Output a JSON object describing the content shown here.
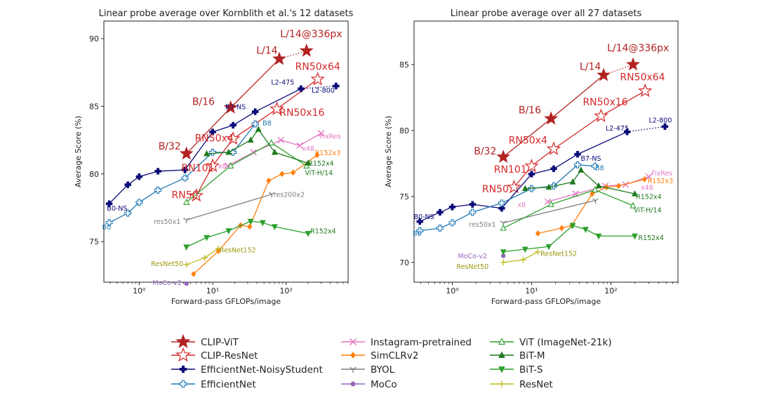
{
  "colors": {
    "clip_vit": "#b22222",
    "clip_resnet": "#d62728",
    "effnet_ns": "#0a0a78",
    "effnet": "#1f77b4",
    "instagram": "#e377c2",
    "simclr": "#ff7f0e",
    "byol": "#7f7f7f",
    "moco": "#9467bd",
    "vit": "#2ca02c",
    "bit_m": "#1d7a1d",
    "bit_s": "#2ca02c",
    "resnet": "#bcbd22"
  },
  "legend": [
    {
      "id": "clip_vit",
      "label": "CLIP-ViT",
      "color": "#b22222",
      "marker": "star-filled"
    },
    {
      "id": "clip_resnet",
      "label": "CLIP-ResNet",
      "color": "#d62728",
      "marker": "star-open"
    },
    {
      "id": "effnet_ns",
      "label": "EfficientNet-NoisyStudent",
      "color": "#0a0a78",
      "marker": "plus-filled"
    },
    {
      "id": "effnet",
      "label": "EfficientNet",
      "color": "#1f77b4",
      "marker": "plus-open"
    },
    {
      "id": "instagram",
      "label": "Instagram-pretrained",
      "color": "#e377c2",
      "marker": "x"
    },
    {
      "id": "simclr",
      "label": "SimCLRv2",
      "color": "#ff7f0e",
      "marker": "diamond"
    },
    {
      "id": "byol",
      "label": "BYOL",
      "color": "#7f7f7f",
      "marker": "tri-down"
    },
    {
      "id": "moco",
      "label": "MoCo",
      "color": "#9467bd",
      "marker": "circle"
    },
    {
      "id": "vit",
      "label": "ViT (ImageNet-21k)",
      "color": "#2ca02c",
      "marker": "triangle-open"
    },
    {
      "id": "bit_m",
      "label": "BiT-M",
      "color": "#1d7a1d",
      "marker": "triangle-up"
    },
    {
      "id": "bit_s",
      "label": "BiT-S",
      "color": "#2ca02c",
      "marker": "triangle-down"
    },
    {
      "id": "resnet",
      "label": "ResNet",
      "color": "#bcbd22",
      "marker": "plus"
    }
  ],
  "chart_data": [
    {
      "type": "scatter",
      "title": "Linear probe average over Kornblith et al.'s 12 datasets",
      "xlabel": "Forward-pass GFLOPs/image",
      "ylabel": "Average Score (%)",
      "xscale": "log",
      "xlim": [
        0.33,
        700
      ],
      "ylim": [
        72.0,
        91.3
      ],
      "yticks": [
        75,
        80,
        85,
        90
      ],
      "xticks": [
        {
          "value": 1,
          "label": "10⁰"
        },
        {
          "value": 10,
          "label": "10¹"
        },
        {
          "value": 100,
          "label": "10²"
        }
      ],
      "series": [
        {
          "id": "clip_vit",
          "name": "CLIP-ViT",
          "x": [
            4.4,
            17.6,
            81,
            190
          ],
          "y": [
            81.5,
            84.9,
            88.5,
            89.1
          ],
          "dotted_from": 2
        },
        {
          "id": "clip_resnet",
          "name": "CLIP-ResNet",
          "x": [
            6,
            10,
            19,
            75,
            270
          ],
          "y": [
            78.4,
            80.6,
            82.6,
            84.8,
            87.0
          ]
        },
        {
          "id": "effnet_ns",
          "name": "EfficientNet-NoisyStudent",
          "x": [
            0.39,
            0.7,
            1.0,
            1.8,
            4.2,
            10,
            19,
            38,
            160,
            480
          ],
          "y": [
            77.8,
            79.2,
            79.8,
            80.2,
            80.3,
            83.1,
            83.6,
            84.6,
            86.3,
            86.5
          ],
          "dotted_from": 8
        },
        {
          "id": "effnet",
          "name": "EfficientNet",
          "x": [
            0.39,
            0.7,
            1.0,
            1.8,
            4.2,
            10,
            19,
            38
          ],
          "y": [
            76.4,
            77.1,
            77.9,
            78.8,
            79.7,
            81.6,
            81.6,
            83.7
          ]
        },
        {
          "id": "instagram",
          "name": "Instagram-pretrained",
          "x": [
            16,
            36,
            85,
            153,
            300
          ],
          "y": [
            80.6,
            81.6,
            82.5,
            82.1,
            83.0
          ]
        },
        {
          "id": "simclr",
          "name": "SimCLRv2",
          "x": [
            5.5,
            12,
            24,
            32,
            58,
            88,
            125,
            265
          ],
          "y": [
            72.6,
            74.3,
            76.2,
            76.1,
            79.5,
            80.0,
            80.1,
            81.4
          ]
        },
        {
          "id": "byol",
          "name": "BYOL",
          "x": [
            4.4,
            64
          ],
          "y": [
            76.6,
            78.5
          ]
        },
        {
          "id": "moco",
          "name": "MoCo",
          "x": [
            4.4
          ],
          "y": [
            71.9
          ]
        },
        {
          "id": "vit",
          "name": "ViT (ImageNet-21k)",
          "x": [
            4.4,
            17.6,
            63,
            190
          ],
          "y": [
            77.9,
            80.6,
            82.3,
            80.6
          ]
        },
        {
          "id": "bit_m",
          "name": "BiT-M",
          "x": [
            8.3,
            16.5,
            33,
            42,
            70,
            200
          ],
          "y": [
            81.5,
            81.6,
            82.5,
            83.3,
            81.6,
            80.8
          ]
        },
        {
          "id": "bit_s",
          "name": "BiT-S",
          "x": [
            4.4,
            8.3,
            16.5,
            33,
            48,
            70,
            200
          ],
          "y": [
            74.6,
            75.3,
            75.8,
            76.5,
            76.4,
            76.1,
            75.6
          ]
        },
        {
          "id": "resnet",
          "name": "ResNet",
          "x": [
            4.4,
            7.8,
            12
          ],
          "y": [
            73.3,
            73.8,
            74.5
          ]
        }
      ],
      "annotations": [
        {
          "text": "L/14@336px",
          "x": 220,
          "y": 90.1,
          "color": "#b22222",
          "size": 14
        },
        {
          "text": "L/14",
          "x": 55,
          "y": 88.9,
          "color": "#b22222",
          "size": 14
        },
        {
          "text": "B/16",
          "x": 7.5,
          "y": 85.1,
          "color": "#b22222",
          "size": 14
        },
        {
          "text": "B/32",
          "x": 2.6,
          "y": 81.8,
          "color": "#b22222",
          "size": 14
        },
        {
          "text": "RN50x64",
          "x": 270,
          "y": 87.7,
          "color": "#d62728",
          "size": 14
        },
        {
          "text": "RN50x16",
          "x": 165,
          "y": 84.3,
          "color": "#d62728",
          "size": 14
        },
        {
          "text": "RN50x4",
          "x": 10.5,
          "y": 82.4,
          "color": "#d62728",
          "size": 14
        },
        {
          "text": "RN101",
          "x": 6.3,
          "y": 80.2,
          "color": "#d62728",
          "size": 14
        },
        {
          "text": "RN50",
          "x": 4.2,
          "y": 78.2,
          "color": "#d62728",
          "size": 14
        },
        {
          "text": "L2-475",
          "x": 90,
          "y": 86.6,
          "color": "#0a0a78",
          "size": 9.5
        },
        {
          "text": "L2-800",
          "x": 320,
          "y": 86.0,
          "color": "#0a0a78",
          "size": 9.5
        },
        {
          "text": "B7-NS",
          "x": 20.5,
          "y": 84.8,
          "color": "#0a0a78",
          "size": 9.5
        },
        {
          "text": "B0-NS",
          "x": 0.5,
          "y": 77.3,
          "color": "#0a0a78",
          "size": 9.5
        },
        {
          "text": "B8",
          "x": 55,
          "y": 83.6,
          "color": "#1f77b4",
          "size": 9.5
        },
        {
          "text": "B0",
          "x": 0.36,
          "y": 75.9,
          "color": "#1f77b4",
          "size": 9.5
        },
        {
          "text": "FixRes",
          "x": 400,
          "y": 82.6,
          "color": "#e377c2",
          "size": 9.5
        },
        {
          "text": "x48",
          "x": 200,
          "y": 81.7,
          "color": "#e377c2",
          "size": 9.5
        },
        {
          "text": "x8",
          "x": 13.5,
          "y": 80.4,
          "color": "#e377c2",
          "size": 9.5
        },
        {
          "text": "R152x3",
          "x": 370,
          "y": 81.4,
          "color": "#ff7f0e",
          "size": 9.5
        },
        {
          "text": "res200x2",
          "x": 110,
          "y": 78.3,
          "color": "#7f7f7f",
          "size": 9.5
        },
        {
          "text": "res50x1",
          "x": 2.4,
          "y": 76.3,
          "color": "#7f7f7f",
          "size": 9.5
        },
        {
          "text": "R152x4",
          "x": 300,
          "y": 80.6,
          "color": "#1d7a1d",
          "size": 9.5
        },
        {
          "text": "ViT-H/14",
          "x": 280,
          "y": 79.9,
          "color": "#1d7a1d",
          "size": 9.5
        },
        {
          "text": "R152x4",
          "x": 320,
          "y": 75.6,
          "color": "#1d7a1d",
          "size": 9.5
        },
        {
          "text": "ResNet152",
          "x": 22,
          "y": 74.2,
          "color": "#9a9a10",
          "size": 9.5
        },
        {
          "text": "ResNet50",
          "x": 2.4,
          "y": 73.2,
          "color": "#9a9a10",
          "size": 9.5
        },
        {
          "text": "MoCo-v2",
          "x": 2.4,
          "y": 71.8,
          "color": "#9467bd",
          "size": 9.5
        }
      ]
    },
    {
      "type": "scatter",
      "title": "Linear probe average over all 27 datasets",
      "xlabel": "Forward-pass GFLOPs/image",
      "ylabel": "Average Score (%)",
      "xscale": "log",
      "xlim": [
        0.33,
        700
      ],
      "ylim": [
        68.5,
        88.3
      ],
      "yticks": [
        70,
        75,
        80,
        85
      ],
      "xticks": [
        {
          "value": 1,
          "label": "10⁰"
        },
        {
          "value": 10,
          "label": "10¹"
        },
        {
          "value": 100,
          "label": "10²"
        }
      ],
      "series": [
        {
          "id": "clip_vit",
          "name": "CLIP-ViT",
          "x": [
            4.4,
            17.6,
            81,
            190
          ],
          "y": [
            78.0,
            80.9,
            84.2,
            85.0
          ],
          "dotted_from": 2
        },
        {
          "id": "clip_resnet",
          "name": "CLIP-ResNet",
          "x": [
            6,
            10,
            19,
            75,
            270
          ],
          "y": [
            75.7,
            77.3,
            78.6,
            81.1,
            83.0
          ]
        },
        {
          "id": "effnet_ns",
          "name": "EfficientNet-NoisyStudent",
          "x": [
            0.39,
            0.7,
            1.0,
            1.8,
            4.2,
            10,
            19,
            38,
            160,
            480
          ],
          "y": [
            73.1,
            73.8,
            74.2,
            74.4,
            74.1,
            76.7,
            77.1,
            78.2,
            79.9,
            80.3
          ],
          "dotted_from": 8
        },
        {
          "id": "effnet",
          "name": "EfficientNet",
          "x": [
            0.39,
            0.7,
            1.0,
            1.8,
            4.2,
            10,
            19,
            38,
            63
          ],
          "y": [
            72.4,
            72.6,
            73.0,
            73.8,
            74.5,
            75.6,
            75.8,
            77.4,
            77.3
          ]
        },
        {
          "id": "instagram",
          "name": "Instagram-pretrained",
          "x": [
            16,
            36,
            85,
            153,
            300
          ],
          "y": [
            74.6,
            75.2,
            75.8,
            75.9,
            76.5
          ]
        },
        {
          "id": "simclr",
          "name": "SimCLRv2",
          "x": [
            12,
            24,
            32,
            58,
            88,
            125,
            265
          ],
          "y": [
            72.2,
            72.6,
            72.8,
            75.2,
            75.7,
            75.8,
            76.3
          ]
        },
        {
          "id": "byol",
          "name": "BYOL",
          "x": [
            4.4,
            64
          ],
          "y": [
            73.0,
            74.7
          ]
        },
        {
          "id": "moco",
          "name": "MoCo",
          "x": [
            4.4
          ],
          "y": [
            70.5
          ]
        },
        {
          "id": "vit",
          "name": "ViT (ImageNet-21k)",
          "x": [
            4.4,
            17.6,
            63,
            190
          ],
          "y": [
            72.6,
            74.4,
            75.5,
            74.3
          ]
        },
        {
          "id": "bit_m",
          "name": "BiT-M",
          "x": [
            8.3,
            16.5,
            33,
            42,
            70,
            200
          ],
          "y": [
            75.6,
            75.7,
            76.1,
            77.0,
            75.8,
            75.2
          ]
        },
        {
          "id": "bit_s",
          "name": "BiT-S",
          "x": [
            4.4,
            8.3,
            16.5,
            33,
            48,
            70,
            200
          ],
          "y": [
            70.8,
            71.0,
            71.2,
            72.8,
            72.5,
            72.0,
            72.0
          ]
        },
        {
          "id": "resnet",
          "name": "ResNet",
          "x": [
            4.4,
            7.8,
            12
          ],
          "y": [
            70.0,
            70.2,
            70.8
          ]
        }
      ],
      "annotations": [
        {
          "text": "L/14@336px",
          "x": 220,
          "y": 86.0,
          "color": "#b22222",
          "size": 14
        },
        {
          "text": "L/14",
          "x": 55,
          "y": 84.6,
          "color": "#b22222",
          "size": 14
        },
        {
          "text": "B/16",
          "x": 9.5,
          "y": 81.3,
          "color": "#b22222",
          "size": 14
        },
        {
          "text": "B/32",
          "x": 2.6,
          "y": 78.2,
          "color": "#b22222",
          "size": 14
        },
        {
          "text": "RN50x64",
          "x": 250,
          "y": 83.8,
          "color": "#d62728",
          "size": 14
        },
        {
          "text": "RN50x16",
          "x": 85,
          "y": 81.9,
          "color": "#d62728",
          "size": 14
        },
        {
          "text": "RN50x4",
          "x": 9,
          "y": 79.0,
          "color": "#d62728",
          "size": 14
        },
        {
          "text": "RN101",
          "x": 5.4,
          "y": 76.8,
          "color": "#d62728",
          "size": 14
        },
        {
          "text": "RN50",
          "x": 3.5,
          "y": 75.3,
          "color": "#d62728",
          "size": 14
        },
        {
          "text": "L2-475",
          "x": 120,
          "y": 80.0,
          "color": "#0a0a78",
          "size": 9.5
        },
        {
          "text": "L2-800",
          "x": 420,
          "y": 80.6,
          "color": "#0a0a78",
          "size": 9.5
        },
        {
          "text": "B7-NS",
          "x": 56,
          "y": 77.7,
          "color": "#0a0a78",
          "size": 9.5
        },
        {
          "text": "B0-NS",
          "x": 0.44,
          "y": 73.3,
          "color": "#0a0a78",
          "size": 9.5
        },
        {
          "text": "B8",
          "x": 72,
          "y": 77.0,
          "color": "#1f77b4",
          "size": 9.5
        },
        {
          "text": "B0",
          "x": 0.36,
          "y": 72.0,
          "color": "#1f77b4",
          "size": 9.5
        },
        {
          "text": "FixRes",
          "x": 440,
          "y": 76.6,
          "color": "#e377c2",
          "size": 9.5
        },
        {
          "text": "x48",
          "x": 285,
          "y": 75.5,
          "color": "#e377c2",
          "size": 9.5
        },
        {
          "text": "x8",
          "x": 7.5,
          "y": 74.2,
          "color": "#e377c2",
          "size": 9.5
        },
        {
          "text": "R152x3",
          "x": 420,
          "y": 76.0,
          "color": "#ff7f0e",
          "size": 9.5
        },
        {
          "text": "res50x1",
          "x": 2.4,
          "y": 72.7,
          "color": "#7f7f7f",
          "size": 9.5
        },
        {
          "text": "R152x4",
          "x": 300,
          "y": 74.8,
          "color": "#1d7a1d",
          "size": 9.5
        },
        {
          "text": "ViT-H/14",
          "x": 290,
          "y": 73.8,
          "color": "#1d7a1d",
          "size": 9.5
        },
        {
          "text": "R152x4",
          "x": 320,
          "y": 71.7,
          "color": "#1d7a1d",
          "size": 9.5
        },
        {
          "text": "ResNet152",
          "x": 22,
          "y": 70.5,
          "color": "#9a9a10",
          "size": 9.5
        },
        {
          "text": "ResNet50",
          "x": 1.8,
          "y": 69.5,
          "color": "#9a9a10",
          "size": 9.5
        },
        {
          "text": "MoCo-v2",
          "x": 1.8,
          "y": 70.3,
          "color": "#9467bd",
          "size": 9.5
        }
      ]
    }
  ]
}
